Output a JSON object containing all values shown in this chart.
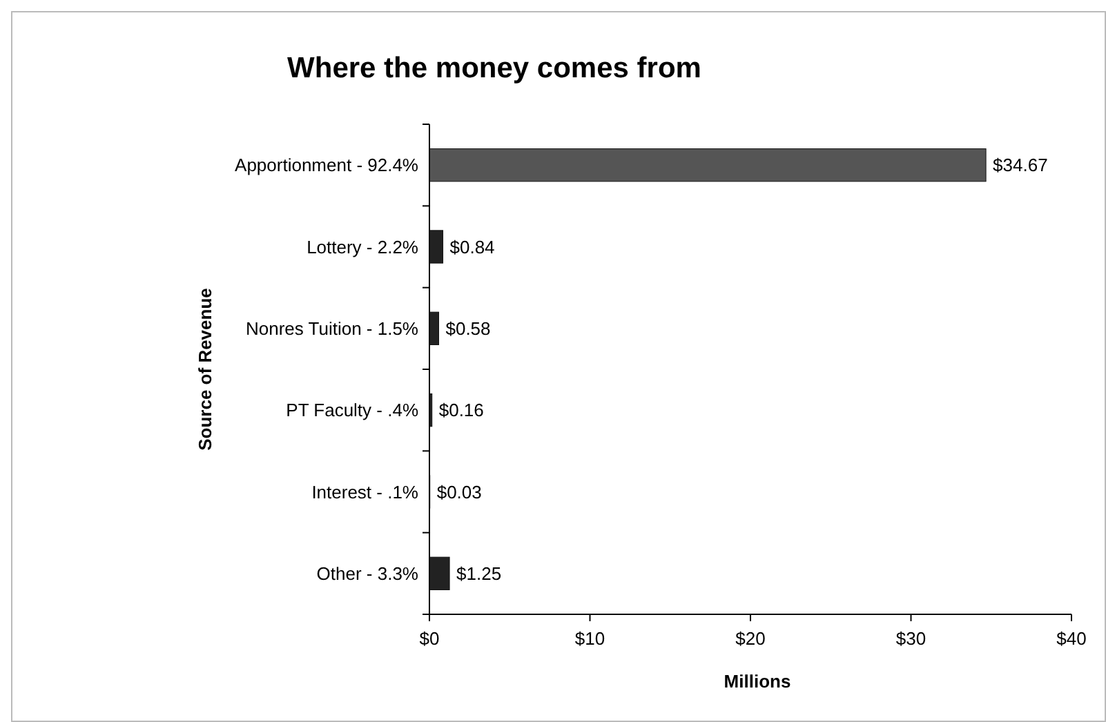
{
  "chart_data": {
    "type": "bar",
    "orientation": "horizontal",
    "title": "Where the money comes from",
    "xlabel": "Millions",
    "ylabel": "Source of Revenue",
    "categories": [
      "Apportionment - 92.4%",
      "Lottery - 2.2%",
      "Nonres Tuition - 1.5%",
      "PT Faculty - .4%",
      "Interest - .1%",
      "Other - 3.3%"
    ],
    "values": [
      34.67,
      0.84,
      0.58,
      0.16,
      0.03,
      1.25
    ],
    "value_labels": [
      "$34.67",
      "$0.84",
      "$0.58",
      "$0.16",
      "$0.03",
      "$1.25"
    ],
    "colors": [
      "#555555",
      "#222222",
      "#222222",
      "#222222",
      "#222222",
      "#222222"
    ],
    "xlim": [
      0,
      40
    ],
    "xticks": [
      {
        "value": 0,
        "label": "$0"
      },
      {
        "value": 10,
        "label": "$10"
      },
      {
        "value": 20,
        "label": "$20"
      },
      {
        "value": 30,
        "label": "$30"
      },
      {
        "value": 40,
        "label": "$40"
      }
    ],
    "grid": false
  }
}
